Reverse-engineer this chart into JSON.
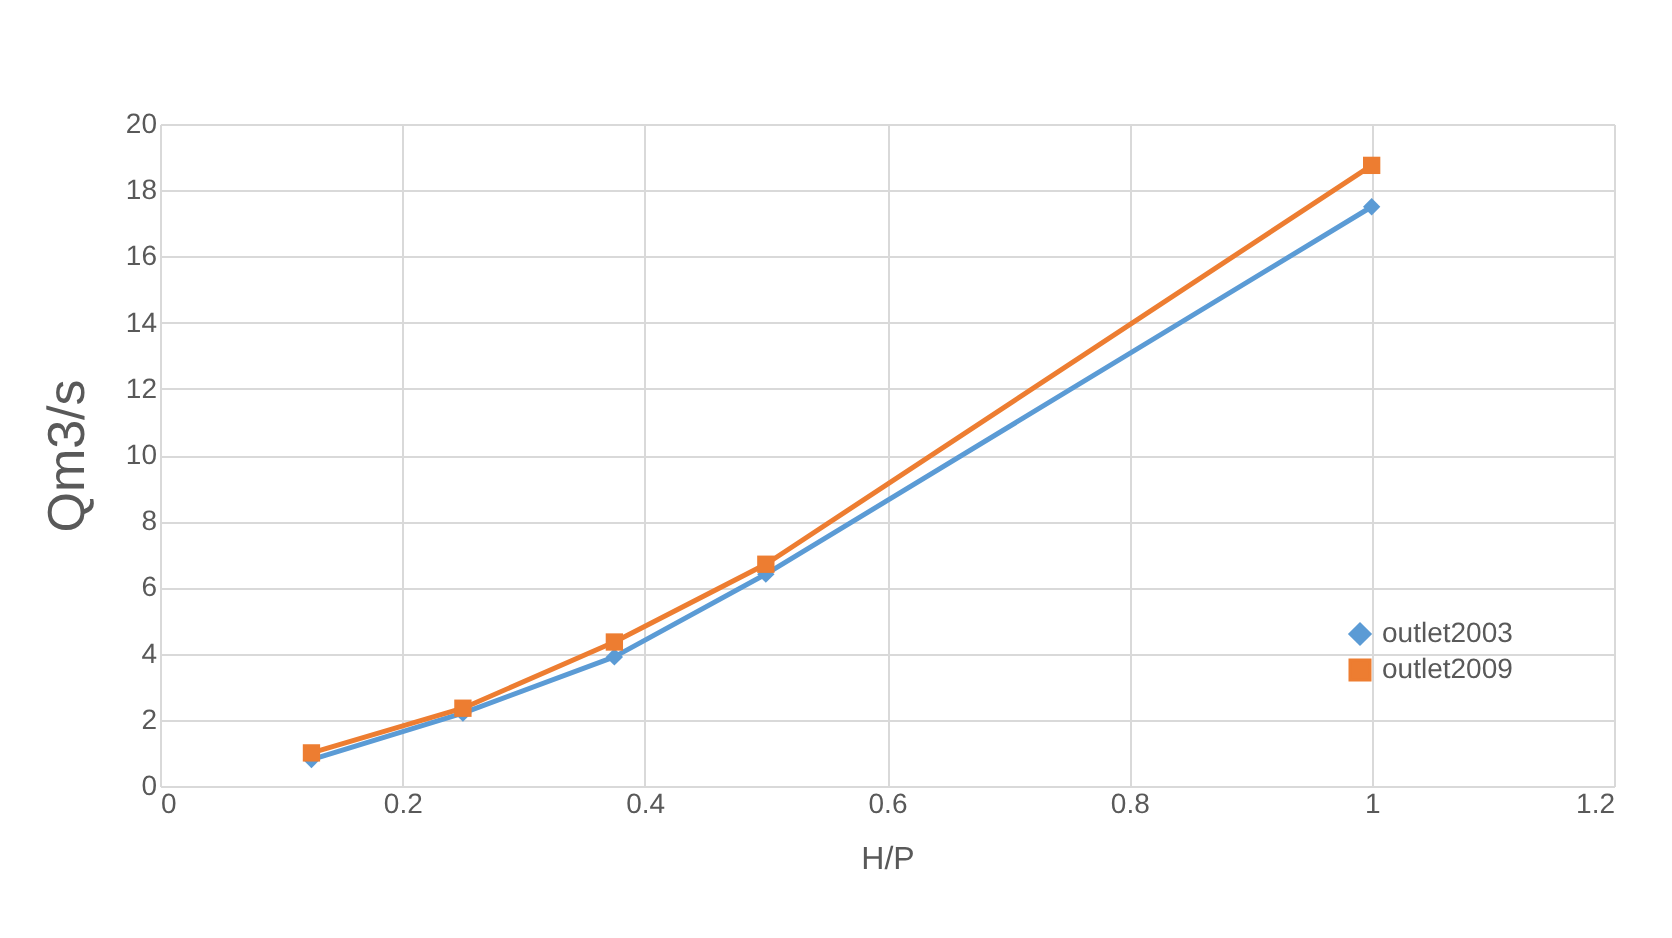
{
  "chart_data": {
    "type": "line",
    "xlabel": "H/P",
    "ylabel": "Qm3/s",
    "xlim": [
      0,
      1.2
    ],
    "xticks": [
      0,
      0.2,
      0.4,
      0.6,
      0.8,
      1,
      1.2
    ],
    "ylim": [
      0,
      20
    ],
    "yticks": [
      0,
      2,
      4,
      6,
      8,
      10,
      12,
      14,
      16,
      18,
      20
    ],
    "grid": true,
    "legend": "bottom right",
    "line_style": "solid",
    "x": [
      0.125,
      0.25,
      0.375,
      0.5,
      1
    ],
    "series": [
      {
        "name": "outlet2003",
        "color": "#5b9bd5",
        "marker": "diamond",
        "values": [
          0.8,
          2.2,
          3.9,
          6.4,
          17.5
        ]
      },
      {
        "name": "outlet2009",
        "color": "#ed7d31",
        "marker": "square",
        "values": [
          1.0,
          2.35,
          4.35,
          6.7,
          18.75
        ]
      }
    ]
  }
}
